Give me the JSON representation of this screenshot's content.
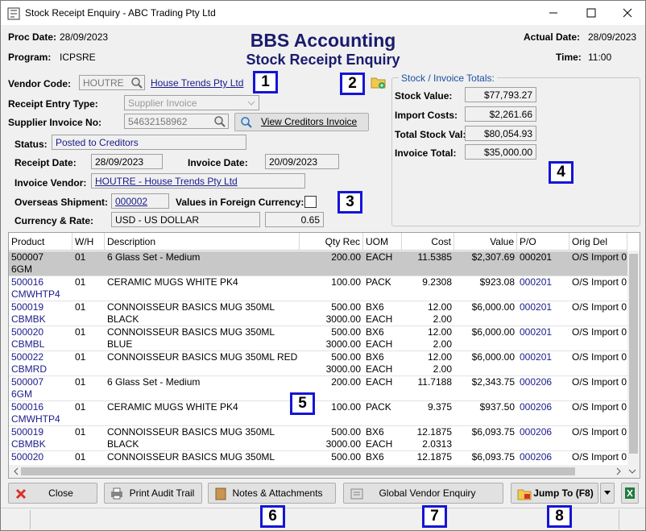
{
  "window": {
    "title": "Stock Receipt Enquiry - ABC Trading Pty Ltd"
  },
  "header": {
    "proc_date_label": "Proc Date:",
    "proc_date": "28/09/2023",
    "program_label": "Program:",
    "program": "ICPSRE",
    "app_title": "BBS Accounting",
    "screen_title": "Stock Receipt Enquiry",
    "actual_date_label": "Actual Date:",
    "actual_date": "28/09/2023",
    "time_label": "Time:",
    "time": "11:00"
  },
  "form": {
    "vendor_code_label": "Vendor Code:",
    "vendor_code": "HOUTRE",
    "vendor_name": "House Trends Pty Ltd",
    "receipt_entry_type_label": "Receipt Entry Type:",
    "receipt_entry_type": "Supplier Invoice",
    "supplier_invoice_no_label": "Supplier Invoice No:",
    "supplier_invoice_no": "54632158962",
    "view_creditors_invoice": "View Creditors Invoice",
    "status_label": "Status:",
    "status": "Posted to Creditors",
    "receipt_date_label": "Receipt Date:",
    "receipt_date": "28/09/2023",
    "invoice_date_label": "Invoice Date:",
    "invoice_date": "20/09/2023",
    "invoice_vendor_label": "Invoice Vendor:",
    "invoice_vendor": "HOUTRE - House Trends Pty Ltd",
    "overseas_shipment_label": "Overseas Shipment:",
    "overseas_shipment": "000002",
    "foreign_currency_label": "Values in Foreign Currency:",
    "currency_rate_label": "Currency & Rate:",
    "currency": "USD - US DOLLAR",
    "rate": "0.65"
  },
  "totals": {
    "title": "Stock / Invoice Totals:",
    "items": [
      {
        "label": "Stock Value:",
        "value": "$77,793.27"
      },
      {
        "label": "Import Costs:",
        "value": "$2,261.66"
      },
      {
        "label": "Total Stock Val:",
        "value": "$80,054.93"
      },
      {
        "label": "Invoice Total:",
        "value": "$35,000.00"
      }
    ]
  },
  "table": {
    "columns": [
      "Product",
      "W/H",
      "Description",
      "Qty Rec",
      "UOM",
      "Cost",
      "Value",
      "P/O",
      "Orig Del Dkt"
    ],
    "rows": [
      [
        [
          "500007",
          "6GM"
        ],
        [
          "01"
        ],
        [
          "6 Glass Set - Medium"
        ],
        [
          "200.00"
        ],
        [
          "EACH"
        ],
        [
          "11.5385"
        ],
        [
          "$2,307.69"
        ],
        [
          "000201"
        ],
        [
          "O/S Import 0"
        ]
      ],
      [
        [
          "500016",
          "CMWHTP4"
        ],
        [
          "01"
        ],
        [
          "CERAMIC MUGS WHITE PK4"
        ],
        [
          "100.00"
        ],
        [
          "PACK"
        ],
        [
          "9.2308"
        ],
        [
          "$923.08"
        ],
        [
          "000201"
        ],
        [
          "O/S Import 0"
        ]
      ],
      [
        [
          "500019",
          "CBMBK"
        ],
        [
          "01"
        ],
        [
          "CONNOISSEUR BASICS MUG 350ML",
          "BLACK"
        ],
        [
          "500.00",
          "3000.00"
        ],
        [
          "BX6",
          "EACH"
        ],
        [
          "12.00",
          "2.00"
        ],
        [
          "$6,000.00"
        ],
        [
          "000201"
        ],
        [
          "O/S Import 0"
        ]
      ],
      [
        [
          "500020",
          "CBMBL"
        ],
        [
          "01"
        ],
        [
          "CONNOISSEUR BASICS MUG 350ML",
          "BLUE"
        ],
        [
          "500.00",
          "3000.00"
        ],
        [
          "BX6",
          "EACH"
        ],
        [
          "12.00",
          "2.00"
        ],
        [
          "$6,000.00"
        ],
        [
          "000201"
        ],
        [
          "O/S Import 0"
        ]
      ],
      [
        [
          "500022",
          "CBMRD"
        ],
        [
          "01"
        ],
        [
          "CONNOISSEUR BASICS MUG 350ML RED"
        ],
        [
          "500.00",
          "3000.00"
        ],
        [
          "BX6",
          "EACH"
        ],
        [
          "12.00",
          "2.00"
        ],
        [
          "$6,000.00"
        ],
        [
          "000201"
        ],
        [
          "O/S Import 0"
        ]
      ],
      [
        [
          "500007",
          "6GM"
        ],
        [
          "01"
        ],
        [
          "6 Glass Set - Medium"
        ],
        [
          "200.00"
        ],
        [
          "EACH"
        ],
        [
          "11.7188"
        ],
        [
          "$2,343.75"
        ],
        [
          "000206"
        ],
        [
          "O/S Import 0"
        ]
      ],
      [
        [
          "500016",
          "CMWHTP4"
        ],
        [
          "01"
        ],
        [
          "CERAMIC MUGS WHITE PK4"
        ],
        [
          "100.00"
        ],
        [
          "PACK"
        ],
        [
          "9.375"
        ],
        [
          "$937.50"
        ],
        [
          "000206"
        ],
        [
          "O/S Import 0"
        ]
      ],
      [
        [
          "500019",
          "CBMBK"
        ],
        [
          "01"
        ],
        [
          "CONNOISSEUR BASICS MUG 350ML",
          "BLACK"
        ],
        [
          "500.00",
          "3000.00"
        ],
        [
          "BX6",
          "EACH"
        ],
        [
          "12.1875",
          "2.0313"
        ],
        [
          "$6,093.75"
        ],
        [
          "000206"
        ],
        [
          "O/S Import 0"
        ]
      ],
      [
        [
          "500020"
        ],
        [
          "01"
        ],
        [
          "CONNOISSEUR BASICS MUG 350ML"
        ],
        [
          "500.00"
        ],
        [
          "BX6"
        ],
        [
          "12.1875"
        ],
        [
          "$6,093.75"
        ],
        [
          "000206"
        ],
        [
          "O/S Import 0"
        ]
      ]
    ]
  },
  "buttons": [
    "Close",
    "Print Audit Trail",
    "Notes & Attachments",
    "Global Vendor Enquiry",
    "Jump To (F8)"
  ],
  "callouts": [
    "1",
    "2",
    "3",
    "4",
    "5",
    "6",
    "7",
    "8"
  ]
}
